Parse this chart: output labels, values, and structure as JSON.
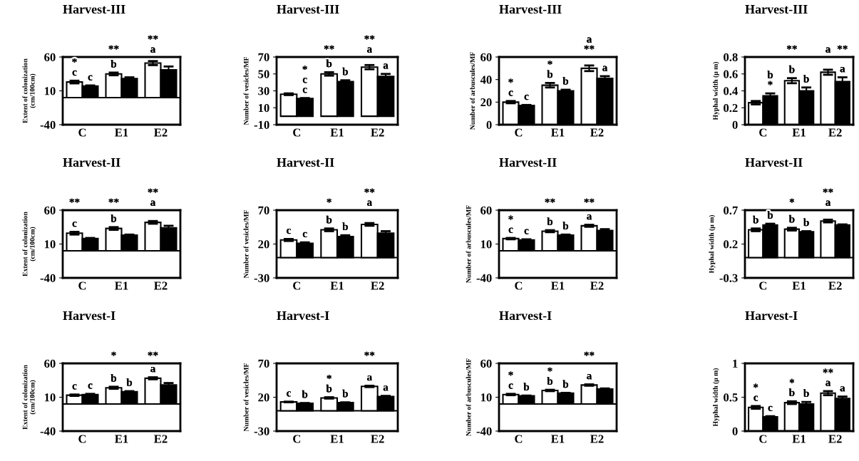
{
  "chart_data": [
    {
      "type": "bar",
      "title": "Harvest-III",
      "ylabel": "Extent of colonization\n(cm/100cm)",
      "categories": [
        "C",
        "E1",
        "E2"
      ],
      "ylim": [
        -40,
        60
      ],
      "yticks": [
        -40,
        10,
        60
      ],
      "grid": false,
      "ref_lines": [
        {
          "axis": "y",
          "value": 0
        }
      ],
      "series": [
        {
          "color": "#ffffff",
          "values": [
            23,
            35,
            51
          ],
          "errors": [
            2,
            2,
            3
          ]
        },
        {
          "color": "#000000",
          "values": [
            17,
            28,
            41
          ],
          "errors": [
            1,
            2,
            5
          ]
        }
      ],
      "annotations": [
        {
          "text": "c",
          "x": "C",
          "y": 23
        },
        {
          "text": "*",
          "x": "C",
          "y": 23
        },
        {
          "text": "c",
          "x": "C",
          "y": 17
        },
        {
          "text": "b",
          "x": "E1",
          "y": 35
        },
        {
          "text": "**",
          "x": "E1",
          "y": 35
        },
        {
          "text": "a",
          "x": "E2",
          "y": 51
        },
        {
          "text": "**",
          "x": "E2",
          "y": 51
        }
      ]
    },
    {
      "type": "bar",
      "title": "Harvest-III",
      "ylabel": "Number of vesicles/MF",
      "categories": [
        "C",
        "E1",
        "E2"
      ],
      "ylim": [
        -10,
        70
      ],
      "yticks": [
        -10,
        10,
        30,
        50,
        70
      ],
      "grid": false,
      "series": [
        {
          "color": "#ffffff",
          "values": [
            26,
            50,
            58
          ],
          "errors": [
            1,
            2,
            2.5
          ]
        },
        {
          "color": "#000000",
          "values": [
            21,
            41,
            47
          ],
          "errors": [
            0.5,
            1.5,
            3
          ]
        }
      ],
      "annotations": [
        {
          "text": "c",
          "x": "C",
          "y": 21
        },
        {
          "text": "c",
          "x": "C",
          "y": 21
        },
        {
          "text": "*",
          "x": "C",
          "y": 21
        },
        {
          "text": "b",
          "x": "E1",
          "y": 50
        },
        {
          "text": "**",
          "x": "E1",
          "y": 50
        },
        {
          "text": "b",
          "x": "E1",
          "y": 41
        },
        {
          "text": "a",
          "x": "E2",
          "y": 58
        },
        {
          "text": "**",
          "x": "E2",
          "y": 58
        },
        {
          "text": "a",
          "x": "E2",
          "y": 47
        }
      ]
    },
    {
      "type": "bar",
      "title": "Harvest-III",
      "ylabel": "Number of arbuscules/MF",
      "categories": [
        "C",
        "E1",
        "E2"
      ],
      "ylim": [
        0,
        60
      ],
      "yticks": [
        0,
        20,
        40,
        60
      ],
      "grid": false,
      "series": [
        {
          "color": "#ffffff",
          "values": [
            20,
            35,
            50
          ],
          "errors": [
            1,
            2,
            2.5
          ]
        },
        {
          "color": "#000000",
          "values": [
            17,
            30,
            41
          ],
          "errors": [
            0.5,
            1,
            2
          ]
        }
      ],
      "annotations": [
        {
          "text": "c",
          "x": "C",
          "y": 20
        },
        {
          "text": "*",
          "x": "C",
          "y": 20
        },
        {
          "text": "c",
          "x": "C",
          "y": 17
        },
        {
          "text": "b",
          "x": "E1",
          "y": 35
        },
        {
          "text": "*",
          "x": "E1",
          "y": 35
        },
        {
          "text": "b",
          "x": "E1",
          "y": 30
        },
        {
          "text": "**",
          "x": "E2",
          "y": 50
        },
        {
          "text": "a",
          "x": "E2",
          "y": 50
        },
        {
          "text": "a",
          "x": "E2",
          "y": 41
        }
      ]
    },
    {
      "type": "bar",
      "title": "Harvest-III",
      "ylabel": "Hyphal width (μ m)",
      "categories": [
        "C",
        "E1",
        "E2"
      ],
      "ylim": [
        0,
        0.8
      ],
      "yticks": [
        0,
        0.2,
        0.4,
        0.6,
        0.8
      ],
      "grid": false,
      "series": [
        {
          "color": "#ffffff",
          "values": [
            0.26,
            0.52,
            0.62
          ],
          "errors": [
            0.02,
            0.03,
            0.03
          ]
        },
        {
          "color": "#000000",
          "values": [
            0.34,
            0.4,
            0.51
          ],
          "errors": [
            0.03,
            0.04,
            0.05
          ]
        }
      ],
      "annotations": [
        {
          "text": "*",
          "x": "C",
          "y": 0.34
        },
        {
          "text": "b",
          "x": "C",
          "y": 0.34
        },
        {
          "text": "b",
          "x": "E1",
          "y": 0.52
        },
        {
          "text": "**",
          "x": "E1",
          "y": 0.52
        },
        {
          "text": "b",
          "x": "E1",
          "y": 0.4
        },
        {
          "text": "a",
          "x": "E2",
          "y": 0.62
        },
        {
          "text": "a",
          "x": "E2",
          "y": 0.51
        },
        {
          "text": "**",
          "x": "E2",
          "y": 0.51
        }
      ]
    },
    {
      "type": "bar",
      "title": "Harvest-II",
      "ylabel": "Extent of colonization\n(cm/100cm)",
      "categories": [
        "C",
        "E1",
        "E2"
      ],
      "ylim": [
        -40,
        60
      ],
      "yticks": [
        -40,
        10,
        60
      ],
      "grid": false,
      "ref_lines": [
        {
          "axis": "y",
          "value": 0
        }
      ],
      "series": [
        {
          "color": "#ffffff",
          "values": [
            26,
            33,
            42
          ],
          "errors": [
            2,
            2,
            2
          ]
        },
        {
          "color": "#000000",
          "values": [
            18,
            23,
            34
          ],
          "errors": [
            1,
            1,
            3
          ]
        }
      ],
      "annotations": [
        {
          "text": "c",
          "x": "C",
          "y": 26
        },
        {
          "text": "**",
          "x": "C",
          "y": 26
        },
        {
          "text": "b",
          "x": "E1",
          "y": 33
        },
        {
          "text": "**",
          "x": "E1",
          "y": 33
        },
        {
          "text": "a",
          "x": "E2",
          "y": 42
        },
        {
          "text": "**",
          "x": "E2",
          "y": 42
        }
      ]
    },
    {
      "type": "bar",
      "title": "Harvest-II",
      "ylabel": "Number of vesicles/MF",
      "categories": [
        "C",
        "E1",
        "E2"
      ],
      "ylim": [
        -30,
        70
      ],
      "yticks": [
        -30,
        20,
        70
      ],
      "grid": false,
      "ref_lines": [
        {
          "axis": "y",
          "value": 0
        }
      ],
      "series": [
        {
          "color": "#ffffff",
          "values": [
            26,
            41,
            49
          ],
          "errors": [
            1.5,
            2,
            2
          ]
        },
        {
          "color": "#000000",
          "values": [
            21,
            31,
            36
          ],
          "errors": [
            1.5,
            2,
            3
          ]
        }
      ],
      "annotations": [
        {
          "text": "c",
          "x": "C",
          "y": 26
        },
        {
          "text": "c",
          "x": "C",
          "y": 21
        },
        {
          "text": "b",
          "x": "E1",
          "y": 41
        },
        {
          "text": "*",
          "x": "E1",
          "y": 41
        },
        {
          "text": "b",
          "x": "E1",
          "y": 31
        },
        {
          "text": "a",
          "x": "E2",
          "y": 49
        },
        {
          "text": "**",
          "x": "E2",
          "y": 49
        }
      ]
    },
    {
      "type": "bar",
      "title": "Harvest-II",
      "ylabel": "Number of arbuscules/MF",
      "categories": [
        "C",
        "E1",
        "E2"
      ],
      "ylim": [
        -40,
        60
      ],
      "yticks": [
        -40,
        10,
        60
      ],
      "grid": false,
      "ref_lines": [
        {
          "axis": "y",
          "value": 0
        }
      ],
      "series": [
        {
          "color": "#ffffff",
          "values": [
            18,
            29,
            37
          ],
          "errors": [
            1,
            1.5,
            1.5
          ]
        },
        {
          "color": "#000000",
          "values": [
            16,
            23,
            30
          ],
          "errors": [
            1,
            1,
            2
          ]
        }
      ],
      "annotations": [
        {
          "text": "c",
          "x": "C",
          "y": 18
        },
        {
          "text": "*",
          "x": "C",
          "y": 18
        },
        {
          "text": "c",
          "x": "C",
          "y": 16
        },
        {
          "text": "b",
          "x": "E1",
          "y": 29
        },
        {
          "text": "**",
          "x": "E1",
          "y": 29
        },
        {
          "text": "b",
          "x": "E1",
          "y": 23
        },
        {
          "text": "a",
          "x": "E2",
          "y": 37
        },
        {
          "text": "**",
          "x": "E2",
          "y": 37
        }
      ]
    },
    {
      "type": "bar",
      "title": "Harvest-II",
      "ylabel": "Hyphal width (μ m)",
      "categories": [
        "C",
        "E1",
        "E2"
      ],
      "ylim": [
        -0.3,
        0.7
      ],
      "yticks": [
        -0.3,
        0.2,
        0.7
      ],
      "grid": false,
      "ref_lines": [
        {
          "axis": "y",
          "value": 0
        }
      ],
      "series": [
        {
          "color": "#ffffff",
          "values": [
            0.41,
            0.42,
            0.54
          ],
          "errors": [
            0.02,
            0.02,
            0.02
          ]
        },
        {
          "color": "#000000",
          "values": [
            0.48,
            0.38,
            0.48
          ],
          "errors": [
            0.02,
            0.01,
            0.01
          ]
        }
      ],
      "annotations": [
        {
          "text": "b",
          "x": "C",
          "y": 0.41
        },
        {
          "text": "b",
          "x": "C",
          "y": 0.48
        },
        {
          "text": "b",
          "x": "E1",
          "y": 0.42
        },
        {
          "text": "*",
          "x": "E1",
          "y": 0.42
        },
        {
          "text": "b",
          "x": "E1",
          "y": 0.38
        },
        {
          "text": "a",
          "x": "E2",
          "y": 0.54
        },
        {
          "text": "**",
          "x": "E2",
          "y": 0.54
        }
      ]
    },
    {
      "type": "bar",
      "title": "Harvest-I",
      "ylabel": "Extent of colonization\n(cm/100cm)",
      "categories": [
        "C",
        "E1",
        "E2"
      ],
      "ylim": [
        -40,
        60
      ],
      "yticks": [
        -40,
        10,
        60
      ],
      "grid": false,
      "ref_lines": [
        {
          "axis": "y",
          "value": 0
        }
      ],
      "series": [
        {
          "color": "#ffffff",
          "values": [
            13,
            24,
            38
          ],
          "errors": [
            1,
            1.5,
            1.5
          ]
        },
        {
          "color": "#000000",
          "values": [
            14,
            18,
            28
          ],
          "errors": [
            1,
            1,
            3
          ]
        }
      ],
      "annotations": [
        {
          "text": "c",
          "x": "C",
          "y": 13
        },
        {
          "text": "c",
          "x": "C",
          "y": 14
        },
        {
          "text": "b",
          "x": "E1",
          "y": 24
        },
        {
          "text": "*",
          "x": "E1",
          "y": 24
        },
        {
          "text": "b",
          "x": "E1",
          "y": 18
        },
        {
          "text": "a",
          "x": "E2",
          "y": 38
        },
        {
          "text": "**",
          "x": "E2",
          "y": 38
        }
      ]
    },
    {
      "type": "bar",
      "title": "Harvest-I",
      "ylabel": "Number of vesicles/MF",
      "categories": [
        "C",
        "E1",
        "E2"
      ],
      "ylim": [
        -30,
        70
      ],
      "yticks": [
        -30,
        20,
        70
      ],
      "grid": false,
      "ref_lines": [
        {
          "axis": "y",
          "value": 0
        }
      ],
      "series": [
        {
          "color": "#ffffff",
          "values": [
            13,
            19,
            36
          ],
          "errors": [
            0.5,
            1,
            1
          ]
        },
        {
          "color": "#000000",
          "values": [
            11,
            12,
            21
          ],
          "errors": [
            0.5,
            0.5,
            1
          ]
        }
      ],
      "annotations": [
        {
          "text": "c",
          "x": "C",
          "y": 13
        },
        {
          "text": "b",
          "x": "C",
          "y": 11
        },
        {
          "text": "b",
          "x": "E1",
          "y": 19
        },
        {
          "text": "*",
          "x": "E1",
          "y": 19
        },
        {
          "text": "b",
          "x": "E1",
          "y": 12
        },
        {
          "text": "a",
          "x": "E2",
          "y": 36
        },
        {
          "text": "**",
          "x": "E2",
          "y": 36
        },
        {
          "text": "a",
          "x": "E2",
          "y": 21
        }
      ]
    },
    {
      "type": "bar",
      "title": "Harvest-I",
      "ylabel": "Number of arbuscules/MF",
      "categories": [
        "C",
        "E1",
        "E2"
      ],
      "ylim": [
        -40,
        60
      ],
      "yticks": [
        -40,
        10,
        60
      ],
      "grid": false,
      "ref_lines": [
        {
          "axis": "y",
          "value": 0
        }
      ],
      "series": [
        {
          "color": "#ffffff",
          "values": [
            14,
            20,
            28
          ],
          "errors": [
            1,
            1,
            1
          ]
        },
        {
          "color": "#000000",
          "values": [
            12,
            16,
            22
          ],
          "errors": [
            0.5,
            0.5,
            1
          ]
        }
      ],
      "annotations": [
        {
          "text": "c",
          "x": "C",
          "y": 14
        },
        {
          "text": "*",
          "x": "C",
          "y": 14
        },
        {
          "text": "b",
          "x": "C",
          "y": 12
        },
        {
          "text": "b",
          "x": "E1",
          "y": 20
        },
        {
          "text": "*",
          "x": "E1",
          "y": 20
        },
        {
          "text": "b",
          "x": "E1",
          "y": 16
        },
        {
          "text": "a",
          "x": "E2",
          "y": 28
        },
        {
          "text": "**",
          "x": "E2",
          "y": 28
        }
      ]
    },
    {
      "type": "bar",
      "title": "Harvest-I",
      "ylabel": "Hyphal width (μ m)",
      "categories": [
        "C",
        "E1",
        "E2"
      ],
      "ylim": [
        0,
        1
      ],
      "yticks": [
        0,
        0.5,
        1
      ],
      "grid": false,
      "series": [
        {
          "color": "#ffffff",
          "values": [
            0.35,
            0.42,
            0.56
          ],
          "errors": [
            0.02,
            0.02,
            0.03
          ]
        },
        {
          "color": "#000000",
          "values": [
            0.21,
            0.4,
            0.48
          ],
          "errors": [
            0.01,
            0.03,
            0.03
          ]
        }
      ],
      "annotations": [
        {
          "text": "c",
          "x": "C",
          "y": 0.35
        },
        {
          "text": "*",
          "x": "C",
          "y": 0.35
        },
        {
          "text": "c",
          "x": "C",
          "y": 0.21
        },
        {
          "text": "b",
          "x": "E1",
          "y": 0.42
        },
        {
          "text": "*",
          "x": "E1",
          "y": 0.42
        },
        {
          "text": "b",
          "x": "E1",
          "y": 0.4
        },
        {
          "text": "a",
          "x": "E2",
          "y": 0.56
        },
        {
          "text": "**",
          "x": "E2",
          "y": 0.56
        },
        {
          "text": "a",
          "x": "E2",
          "y": 0.48
        }
      ]
    }
  ]
}
